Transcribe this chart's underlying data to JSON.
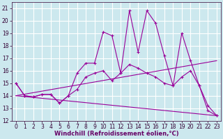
{
  "xlabel": "Windchill (Refroidissement éolien,°C)",
  "bg_color": "#cce8ee",
  "grid_color": "#ffffff",
  "line_color": "#990099",
  "xlim": [
    -0.5,
    23.5
  ],
  "ylim": [
    12,
    21.5
  ],
  "yticks": [
    12,
    13,
    14,
    15,
    16,
    17,
    18,
    19,
    20,
    21
  ],
  "xticks": [
    0,
    1,
    2,
    3,
    4,
    5,
    6,
    7,
    8,
    9,
    10,
    11,
    12,
    13,
    14,
    15,
    16,
    17,
    18,
    19,
    20,
    21,
    22,
    23
  ],
  "lines": [
    {
      "x": [
        0,
        1,
        2,
        3,
        4,
        5,
        6,
        7,
        8,
        9,
        10,
        11,
        12,
        13,
        14,
        15,
        16,
        17,
        18,
        19,
        20,
        21,
        22,
        23
      ],
      "y": [
        15.0,
        14.0,
        13.9,
        14.1,
        14.1,
        13.4,
        14.0,
        15.8,
        16.6,
        16.6,
        19.1,
        18.8,
        15.8,
        20.8,
        17.5,
        20.8,
        19.8,
        17.2,
        14.8,
        19.0,
        16.8,
        14.8,
        12.8,
        12.4
      ],
      "marker": true
    },
    {
      "x": [
        0,
        1,
        2,
        3,
        4,
        5,
        6,
        7,
        8,
        9,
        10,
        11,
        12,
        13,
        14,
        15,
        16,
        17,
        18,
        19,
        20,
        21,
        22,
        23
      ],
      "y": [
        15.0,
        14.0,
        13.9,
        14.1,
        14.1,
        13.4,
        14.0,
        14.5,
        15.5,
        15.8,
        16.0,
        15.2,
        15.8,
        16.5,
        16.2,
        15.8,
        15.5,
        15.0,
        14.8,
        15.5,
        16.0,
        14.8,
        13.2,
        12.4
      ],
      "marker": true
    },
    {
      "x": [
        0,
        23
      ],
      "y": [
        14.0,
        16.8
      ],
      "marker": false
    },
    {
      "x": [
        0,
        23
      ],
      "y": [
        14.0,
        12.4
      ],
      "marker": false
    }
  ],
  "xlabel_color": "#660066",
  "xlabel_fontsize": 6,
  "tick_fontsize": 5.5,
  "tick_color": "#330033"
}
